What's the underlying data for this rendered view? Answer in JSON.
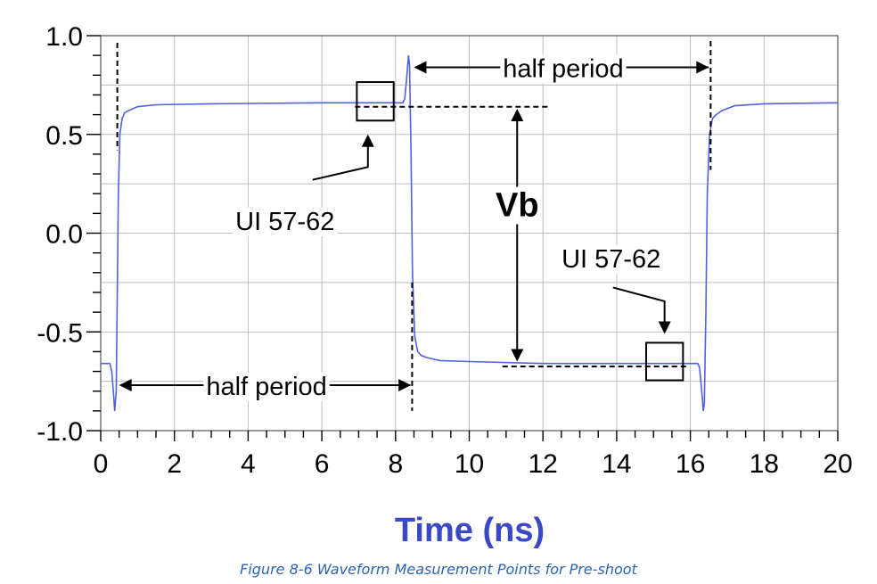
{
  "chart_data": {
    "type": "line",
    "xlabel": "Time (ns)",
    "ylabel": "",
    "xlim": [
      0,
      20
    ],
    "ylim": [
      -1.0,
      1.0
    ],
    "xticks": [
      "0",
      "2",
      "4",
      "6",
      "8",
      "10",
      "12",
      "14",
      "16",
      "18",
      "20"
    ],
    "yticks": [
      "1.0",
      "0.5",
      "0.0",
      "-0.5",
      "-1.0"
    ],
    "grid": true,
    "series": [
      {
        "color": "#5060e0",
        "points": [
          [
            0,
            -0.66
          ],
          [
            0.25,
            -0.66
          ],
          [
            0.3,
            -0.7
          ],
          [
            0.35,
            -0.82
          ],
          [
            0.38,
            -0.9
          ],
          [
            0.42,
            -0.8
          ],
          [
            0.45,
            -0.3
          ],
          [
            0.48,
            0.2
          ],
          [
            0.52,
            0.5
          ],
          [
            0.58,
            0.58
          ],
          [
            0.65,
            0.61
          ],
          [
            0.75,
            0.62
          ],
          [
            1.0,
            0.64
          ],
          [
            1.5,
            0.65
          ],
          [
            3,
            0.655
          ],
          [
            6,
            0.66
          ],
          [
            8.2,
            0.66
          ],
          [
            8.25,
            0.68
          ],
          [
            8.3,
            0.78
          ],
          [
            8.35,
            0.9
          ],
          [
            8.38,
            0.85
          ],
          [
            8.42,
            0.4
          ],
          [
            8.46,
            -0.2
          ],
          [
            8.52,
            -0.52
          ],
          [
            8.6,
            -0.6
          ],
          [
            8.7,
            -0.62
          ],
          [
            8.85,
            -0.63
          ],
          [
            9.2,
            -0.645
          ],
          [
            10,
            -0.65
          ],
          [
            12,
            -0.66
          ],
          [
            16.2,
            -0.66
          ],
          [
            16.25,
            -0.68
          ],
          [
            16.3,
            -0.78
          ],
          [
            16.35,
            -0.9
          ],
          [
            16.38,
            -0.86
          ],
          [
            16.42,
            -0.4
          ],
          [
            16.46,
            0.2
          ],
          [
            16.52,
            0.5
          ],
          [
            16.6,
            0.58
          ],
          [
            16.7,
            0.6
          ],
          [
            16.85,
            0.62
          ],
          [
            17.2,
            0.645
          ],
          [
            18,
            0.655
          ],
          [
            20,
            0.66
          ]
        ]
      }
    ],
    "annotations": {
      "half_period_top": "half period",
      "half_period_bottom": "half period",
      "vb": "Vb",
      "ui_left": "UI 57-62",
      "ui_right": "UI 57-62"
    }
  },
  "caption": "Figure  8-6  Waveform Measurement Points for Pre-shoot"
}
